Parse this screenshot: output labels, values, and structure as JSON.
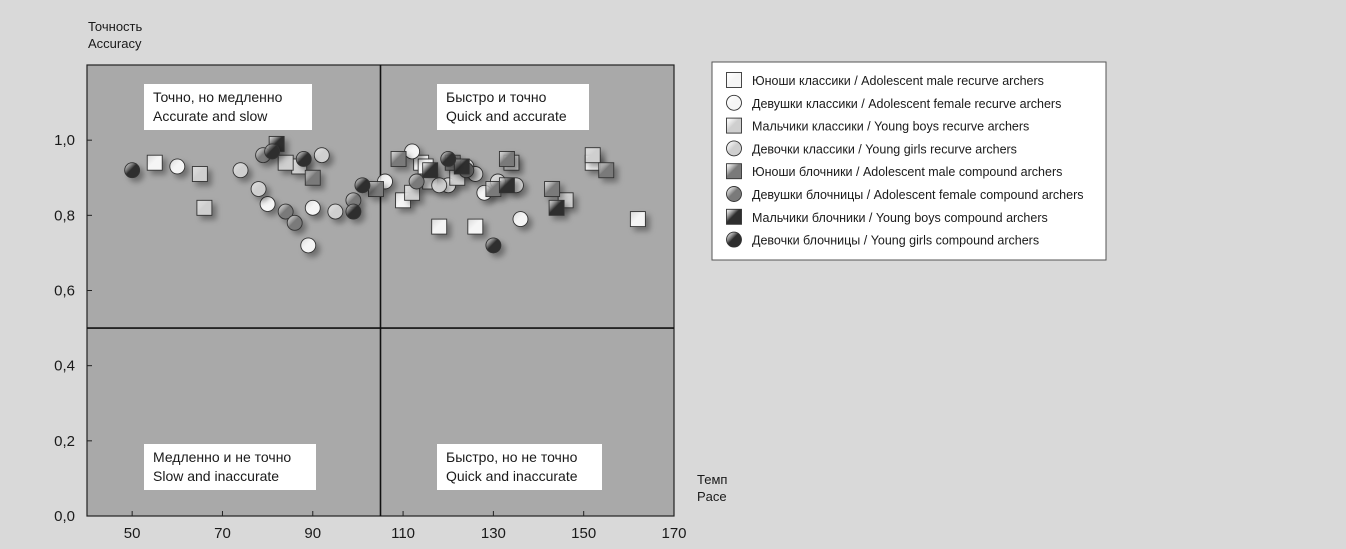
{
  "chart_data": {
    "type": "scatter",
    "title": "",
    "xlabel": "Темп\nPace",
    "ylabel": "Точность\nAccuracy",
    "xlim": [
      40,
      170
    ],
    "ylim": [
      0,
      1.2
    ],
    "xticks": [
      50,
      70,
      90,
      110,
      130,
      150,
      170
    ],
    "yticks": [
      "0,0",
      "0,2",
      "0,4",
      "0,6",
      "0,8",
      "1,0"
    ],
    "ytick_values": [
      0,
      0.2,
      0.4,
      0.6,
      0.8,
      1.0
    ],
    "divider_x": 105,
    "divider_y": 0.5,
    "grid": false,
    "legend_position": "right",
    "quadrants": [
      {
        "line1": "Точно, но медленно",
        "line2": "Accurate and slow"
      },
      {
        "line1": "Быстро и точно",
        "line2": "Quick and accurate"
      },
      {
        "line1": "Медленно и не точно",
        "line2": "Slow and inaccurate"
      },
      {
        "line1": "Быстро, но не точно",
        "line2": "Quick and inaccurate"
      }
    ],
    "series": [
      {
        "name": "Юноши классики / Adolescent male recurve archers",
        "marker": "square",
        "fill": "#f5f5f5",
        "points": [
          [
            55,
            0.94
          ],
          [
            118,
            0.77
          ],
          [
            126,
            0.77
          ],
          [
            152,
            0.94
          ],
          [
            162,
            0.79
          ],
          [
            114,
            0.94
          ],
          [
            110,
            0.84
          ],
          [
            115,
            0.93
          ]
        ]
      },
      {
        "name": "Девушки классики / Adolescent female recurve archers",
        "marker": "circle",
        "fill": "#f5f5f5",
        "points": [
          [
            60,
            0.93
          ],
          [
            80,
            0.83
          ],
          [
            90,
            0.82
          ],
          [
            112,
            0.97
          ],
          [
            120,
            0.88
          ],
          [
            124,
            0.93
          ],
          [
            128,
            0.86
          ],
          [
            136,
            0.79
          ],
          [
            106,
            0.89
          ],
          [
            89,
            0.72
          ]
        ]
      },
      {
        "name": "Мальчики классики / Young boys recurve archers",
        "marker": "square",
        "fill": "#cfcfcf",
        "points": [
          [
            65,
            0.91
          ],
          [
            66,
            0.82
          ],
          [
            87,
            0.93
          ],
          [
            112,
            0.86
          ],
          [
            116,
            0.89
          ],
          [
            122,
            0.9
          ],
          [
            134,
            0.94
          ],
          [
            146,
            0.84
          ],
          [
            84,
            0.94
          ],
          [
            152,
            0.96
          ]
        ]
      },
      {
        "name": "Девочки классики / Young girls recurve archers",
        "marker": "circle",
        "fill": "#cfcfcf",
        "points": [
          [
            74,
            0.92
          ],
          [
            78,
            0.87
          ],
          [
            92,
            0.96
          ],
          [
            95,
            0.81
          ],
          [
            126,
            0.91
          ],
          [
            131,
            0.89
          ],
          [
            135,
            0.88
          ],
          [
            118,
            0.88
          ]
        ]
      },
      {
        "name": "Юноши блочники / Adolescent male compound archers",
        "marker": "square",
        "fill": "#7a7a7a",
        "points": [
          [
            90,
            0.9
          ],
          [
            104,
            0.87
          ],
          [
            109,
            0.95
          ],
          [
            121,
            0.94
          ],
          [
            133,
            0.95
          ],
          [
            143,
            0.87
          ],
          [
            155,
            0.92
          ],
          [
            130,
            0.87
          ]
        ]
      },
      {
        "name": "Девушки блочницы / Adolescent female compound archers",
        "marker": "circle",
        "fill": "#7a7a7a",
        "points": [
          [
            79,
            0.96
          ],
          [
            84,
            0.81
          ],
          [
            86,
            0.78
          ],
          [
            99,
            0.84
          ],
          [
            113,
            0.89
          ],
          [
            124,
            0.92
          ]
        ]
      },
      {
        "name": "Мальчики блочники / Young boys compound archers",
        "marker": "square",
        "fill": "#2e2e2e",
        "points": [
          [
            82,
            0.99
          ],
          [
            116,
            0.92
          ],
          [
            123,
            0.93
          ],
          [
            133,
            0.88
          ],
          [
            144,
            0.82
          ]
        ]
      },
      {
        "name": "Девочки блочницы / Young girls compound archers",
        "marker": "circle",
        "fill": "#2e2e2e",
        "points": [
          [
            50,
            0.92
          ],
          [
            81,
            0.97
          ],
          [
            88,
            0.95
          ],
          [
            99,
            0.81
          ],
          [
            101,
            0.88
          ],
          [
            120,
            0.95
          ],
          [
            130,
            0.72
          ]
        ]
      }
    ]
  }
}
